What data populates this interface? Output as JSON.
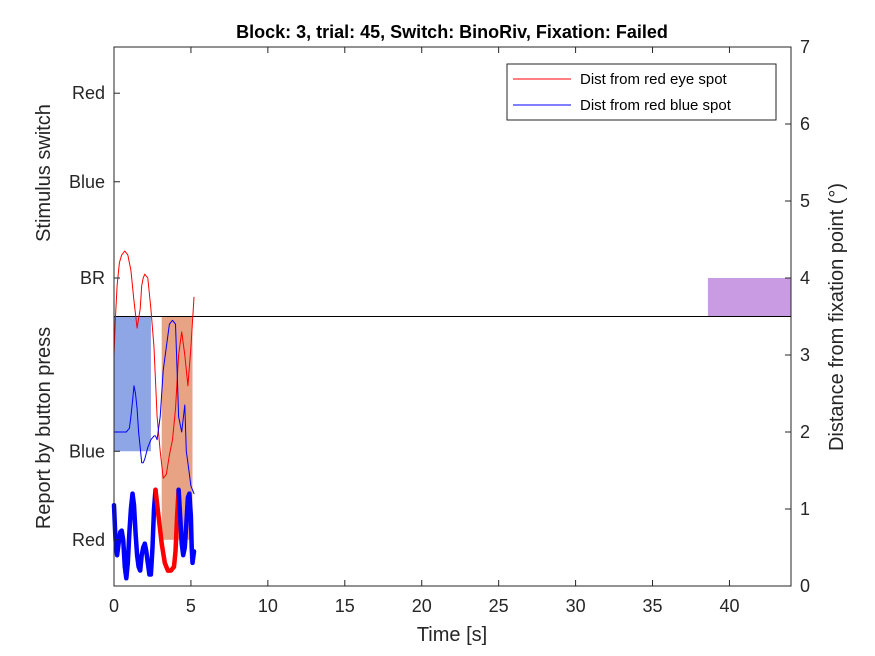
{
  "chart_data": {
    "type": "line",
    "title": "Block: 3, trial: 45, Switch: BinoRiv, Fixation: Failed",
    "xlabel": "Time [s]",
    "xlim": [
      0,
      44
    ],
    "x_ticks": [
      0,
      5,
      10,
      15,
      20,
      25,
      30,
      35,
      40
    ],
    "grid": false,
    "left_axis": {
      "upper_label": "Stimulus switch",
      "lower_label": "Report by button press",
      "stimulus_categories": [
        "BR",
        "Blue",
        "Red"
      ],
      "report_categories": [
        "Blue",
        "Red"
      ]
    },
    "right_axis": {
      "label": "Distance from fixation point (°)",
      "ylim": [
        0,
        7
      ],
      "ticks": [
        0,
        1,
        2,
        3,
        4,
        5,
        6,
        7
      ]
    },
    "separator_y": 3.5,
    "stimulus_switch": [
      {
        "state": "BR",
        "start": 38.6,
        "end": 44,
        "color": "#c99be3"
      }
    ],
    "button_reports": [
      {
        "state": "Blue",
        "start": 0,
        "end": 2.4,
        "color": "#8ea5e6"
      },
      {
        "state": "Red",
        "start": 3.1,
        "end": 5.1,
        "color": "#e8a284"
      }
    ],
    "legend": {
      "position": "top-right",
      "entries": [
        "Dist from red eye spot",
        "Dist from red blue spot"
      ]
    },
    "series": [
      {
        "name": "Dist from red eye spot",
        "color": "#ff0000",
        "x": [
          0,
          0.1,
          0.2,
          0.35,
          0.5,
          0.7,
          0.9,
          1.1,
          1.3,
          1.5,
          1.7,
          1.8,
          1.9,
          2.0,
          2.2,
          2.4,
          2.6,
          2.8,
          3.0,
          3.2,
          3.4,
          3.6,
          3.8,
          4.0,
          4.2,
          4.4,
          4.6,
          4.8,
          5.0,
          5.2
        ],
        "y": [
          3.0,
          3.5,
          3.9,
          4.2,
          4.3,
          4.35,
          4.3,
          4.1,
          3.7,
          3.35,
          3.6,
          3.9,
          4.0,
          4.05,
          4.0,
          3.6,
          3.1,
          2.2,
          1.75,
          1.4,
          1.45,
          1.7,
          1.9,
          2.3,
          3.0,
          3.3,
          3.0,
          2.6,
          3.1,
          3.75
        ]
      },
      {
        "name": "Dist from red blue spot",
        "color": "#0000ff",
        "x": [
          0,
          0.2,
          0.4,
          0.6,
          0.8,
          1.0,
          1.1,
          1.2,
          1.3,
          1.4,
          1.5,
          1.6,
          1.7,
          1.8,
          1.9,
          2.0,
          2.2,
          2.4,
          2.6,
          2.7,
          2.8,
          3.0,
          3.2,
          3.4,
          3.6,
          3.8,
          4.0,
          4.1,
          4.2,
          4.4,
          4.6,
          4.7,
          4.8,
          5.0,
          5.2
        ],
        "y": [
          2.0,
          2.0,
          2.0,
          2.0,
          2.0,
          2.05,
          2.2,
          2.4,
          2.6,
          2.5,
          2.3,
          2.0,
          1.8,
          1.6,
          1.6,
          1.65,
          1.8,
          1.9,
          1.95,
          1.95,
          1.9,
          2.2,
          2.8,
          3.1,
          3.4,
          3.45,
          3.4,
          2.8,
          2.2,
          2.0,
          2.35,
          1.75,
          1.6,
          1.3,
          1.2
        ]
      },
      {
        "name": "",
        "role": "thick gaze trace",
        "color": "#0000ff",
        "x": [
          0,
          0.1,
          0.2,
          0.3,
          0.4,
          0.5,
          0.6,
          0.7,
          0.8,
          0.9,
          1.0,
          1.1,
          1.2,
          1.3,
          1.4,
          1.5,
          1.6,
          1.7,
          1.8,
          1.9,
          2.0,
          2.1,
          2.2,
          2.3,
          2.4,
          2.5,
          2.6,
          2.7
        ],
        "y": [
          1.05,
          0.6,
          0.4,
          0.55,
          0.7,
          0.72,
          0.6,
          0.25,
          0.1,
          0.3,
          0.7,
          1.0,
          1.2,
          1.05,
          0.7,
          0.4,
          0.25,
          0.2,
          0.4,
          0.5,
          0.55,
          0.45,
          0.3,
          0.15,
          0.15,
          0.5,
          1.0,
          1.25
        ]
      },
      {
        "name": "",
        "role": "thick gaze trace",
        "color": "#ff0000",
        "x": [
          2.7,
          2.9,
          3.1,
          3.3,
          3.5,
          3.7,
          3.9,
          4.0,
          4.1,
          4.2
        ],
        "y": [
          1.25,
          0.9,
          0.55,
          0.3,
          0.2,
          0.2,
          0.25,
          0.45,
          0.9,
          1.25
        ]
      },
      {
        "name": "",
        "role": "thick gaze trace",
        "color": "#0000ff",
        "x": [
          4.2,
          4.3,
          4.4,
          4.5,
          4.6,
          4.7,
          4.8,
          4.9,
          5.0,
          5.05,
          5.1,
          5.2
        ],
        "y": [
          1.25,
          0.9,
          0.55,
          0.4,
          0.5,
          0.8,
          1.15,
          1.2,
          0.9,
          0.5,
          0.3,
          0.45
        ]
      }
    ]
  }
}
